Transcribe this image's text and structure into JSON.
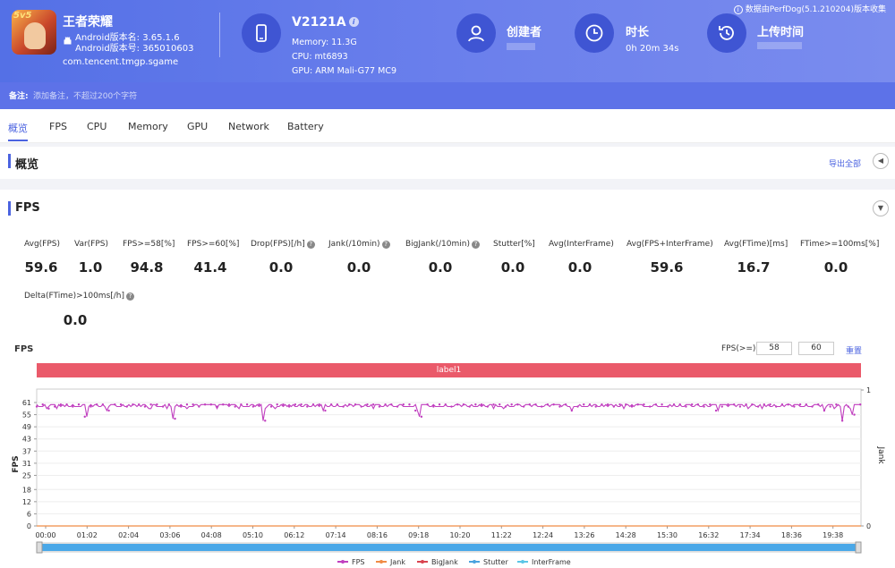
{
  "app": {
    "name": "王者荣耀",
    "icon_badge": "5v5",
    "android_version": "Android版本名: 3.65.1.6",
    "android_code": "Android版本号: 365010603",
    "package": "com.tencent.tmgp.sgame"
  },
  "device": {
    "name": "V2121A",
    "memory": "Memory: 11.3G",
    "cpu": "CPU: mt6893",
    "gpu": "GPU: ARM Mali-G77 MC9"
  },
  "creator": {
    "title": "创建者"
  },
  "duration": {
    "title": "时长",
    "value": "0h 20m 34s"
  },
  "upload": {
    "title": "上传时间"
  },
  "source_note": "数据由PerfDog(5.1.210204)版本收集",
  "remark": {
    "label": "备注:",
    "placeholder": "添加备注，不超过200个字符"
  },
  "tabs": [
    "概览",
    "FPS",
    "CPU",
    "Memory",
    "GPU",
    "Network",
    "Battery"
  ],
  "overview": {
    "title": "概览",
    "export": "导出全部"
  },
  "fps_section": {
    "title": "FPS"
  },
  "metrics": [
    {
      "label": "Avg(FPS)",
      "value": "59.6"
    },
    {
      "label": "Var(FPS)",
      "value": "1.0"
    },
    {
      "label": "FPS>=58[%]",
      "value": "94.8"
    },
    {
      "label": "FPS>=60[%]",
      "value": "41.4"
    },
    {
      "label": "Drop(FPS)[/h]",
      "value": "0.0"
    },
    {
      "label": "Jank(/10min)",
      "value": "0.0"
    },
    {
      "label": "BigJank(/10min)",
      "value": "0.0"
    },
    {
      "label": "Stutter[%]",
      "value": "0.0"
    },
    {
      "label": "Avg(InterFrame)",
      "value": "0.0"
    },
    {
      "label": "Avg(FPS+InterFrame)",
      "value": "59.6"
    },
    {
      "label": "Avg(FTime)[ms]",
      "value": "16.7"
    },
    {
      "label": "FTime>=100ms[%]",
      "value": "0.0"
    },
    {
      "label": "Delta(FTime)>100ms[/h]",
      "value": "0.0"
    }
  ],
  "chart_controls": {
    "title": "FPS",
    "fps_ge_label": "FPS(>=)",
    "fps_ge_1": "58",
    "fps_ge_2": "60",
    "reset": "重置",
    "label_bar": "label1"
  },
  "chart_data": {
    "type": "line",
    "ylabel": "FPS",
    "y2label": "Jank",
    "ylim": [
      0,
      61
    ],
    "yticks": [
      0,
      6,
      12,
      18,
      25,
      31,
      37,
      43,
      49,
      55,
      61
    ],
    "y2ticks": [
      0,
      1
    ],
    "xticks": [
      "00:00",
      "01:02",
      "02:04",
      "03:06",
      "04:08",
      "05:10",
      "06:12",
      "07:14",
      "08:16",
      "09:18",
      "10:20",
      "11:22",
      "12:24",
      "13:26",
      "14:28",
      "15:30",
      "16:32",
      "17:34",
      "18:36",
      "19:38"
    ],
    "duration_seconds": 1234,
    "baseline_fps": 60,
    "dips": [
      {
        "t": 14,
        "fps": 58
      },
      {
        "t": 75,
        "fps": 54
      },
      {
        "t": 105,
        "fps": 57
      },
      {
        "t": 205,
        "fps": 53
      },
      {
        "t": 340,
        "fps": 52
      },
      {
        "t": 430,
        "fps": 57
      },
      {
        "t": 570,
        "fps": 57
      },
      {
        "t": 573,
        "fps": 54
      },
      {
        "t": 800,
        "fps": 57
      },
      {
        "t": 1020,
        "fps": 57
      },
      {
        "t": 1180,
        "fps": 57
      },
      {
        "t": 1205,
        "fps": 52
      },
      {
        "t": 1220,
        "fps": 55
      }
    ],
    "series": [
      {
        "name": "FPS",
        "color": "#c03fbf"
      },
      {
        "name": "Jank",
        "color": "#f08c45"
      },
      {
        "name": "BigJank",
        "color": "#d9434f"
      },
      {
        "name": "Stutter",
        "color": "#4aa3df"
      },
      {
        "name": "InterFrame",
        "color": "#5bc6e6"
      }
    ]
  }
}
